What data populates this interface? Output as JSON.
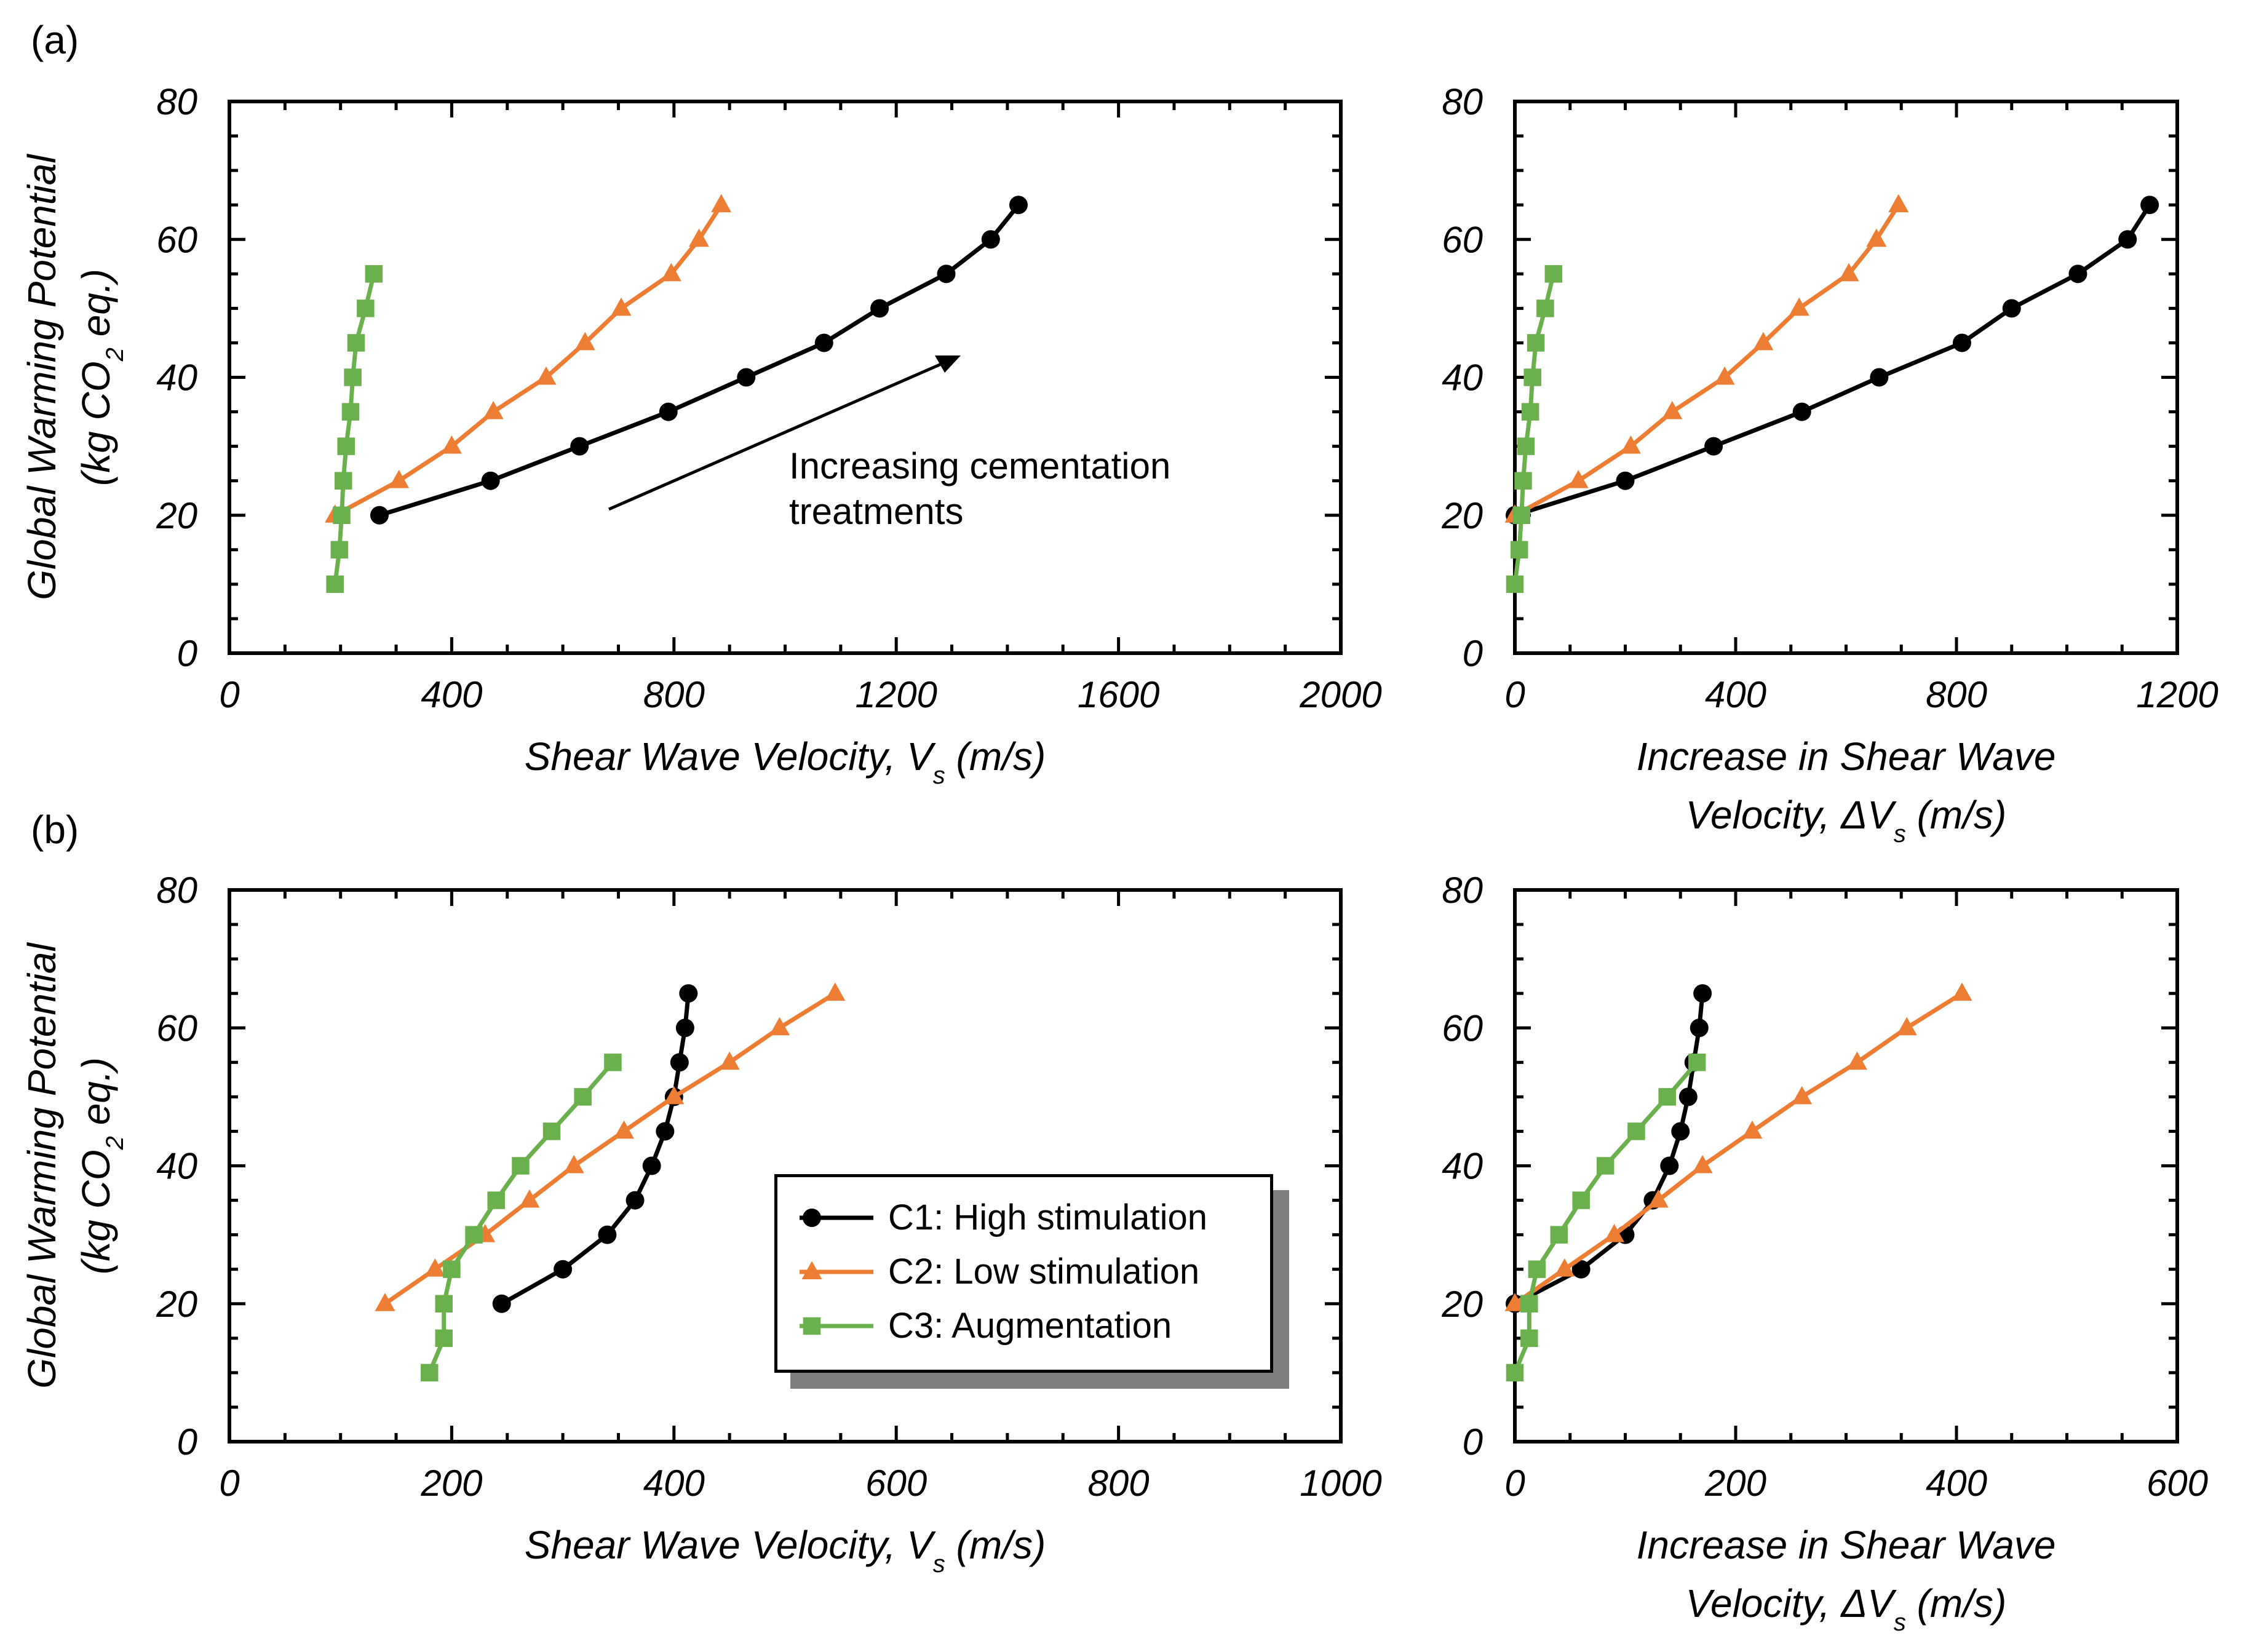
{
  "figure": {
    "panel_labels": [
      "(a)",
      "(b)"
    ],
    "ylabel_line1": "Global Warming Potential",
    "ylabel_line2_pre": "(kg CO",
    "ylabel_line2_sub": "2",
    "ylabel_line2_post": " eq.)",
    "annotation_line1": "Increasing cementation",
    "annotation_line2": "treatments"
  },
  "series_styles": [
    {
      "name": "C1: High stimulation",
      "color": "#000000",
      "marker": "circle"
    },
    {
      "name": "C2: Low stimulation",
      "color": "#ec7d33",
      "marker": "triangle"
    },
    {
      "name": "C3: Augmentation",
      "color": "#6ab04c",
      "marker": "square"
    }
  ],
  "legend": {
    "items": [
      "C1: High stimulation",
      "C2: Low stimulation",
      "C3: Augmentation"
    ]
  },
  "chart_data": [
    {
      "id": "a-left",
      "panel": "(a)",
      "type": "line",
      "xlabel": "Shear Wave Velocity, V_s (m/s)",
      "ylabel": "Global Warming Potential (kg CO2 eq.)",
      "xlim": [
        0,
        2000
      ],
      "ylim": [
        0,
        80
      ],
      "xticks": [
        0,
        400,
        800,
        1200,
        1600,
        2000
      ],
      "yticks": [
        0,
        20,
        40,
        60,
        80
      ],
      "series": [
        {
          "name": "C1: High stimulation",
          "x": [
            270,
            470,
            630,
            790,
            930,
            1070,
            1170,
            1290,
            1370,
            1420
          ],
          "y": [
            20,
            25,
            30,
            35,
            40,
            45,
            50,
            55,
            60,
            65
          ]
        },
        {
          "name": "C2: Low stimulation",
          "x": [
            190,
            305,
            400,
            475,
            570,
            640,
            705,
            795,
            845,
            885
          ],
          "y": [
            20,
            25,
            30,
            35,
            40,
            45,
            50,
            55,
            60,
            65
          ]
        },
        {
          "name": "C3: Augmentation",
          "x": [
            190,
            198,
            202,
            205,
            210,
            218,
            222,
            228,
            245,
            260
          ],
          "y": [
            10,
            15,
            20,
            25,
            30,
            35,
            40,
            45,
            50,
            55
          ]
        }
      ]
    },
    {
      "id": "a-right",
      "panel": "(a)",
      "type": "line",
      "xlabel": "Increase in Shear Wave Velocity, ΔV_s (m/s)",
      "ylabel": "Global Warming Potential (kg CO2 eq.)",
      "xlim": [
        0,
        1200
      ],
      "ylim": [
        0,
        80
      ],
      "xticks": [
        0,
        400,
        800,
        1200
      ],
      "yticks": [
        0,
        20,
        40,
        60,
        80
      ],
      "series": [
        {
          "name": "C1: High stimulation",
          "x": [
            0,
            200,
            360,
            520,
            660,
            810,
            900,
            1020,
            1110,
            1150
          ],
          "y": [
            20,
            25,
            30,
            35,
            40,
            45,
            50,
            55,
            60,
            65
          ]
        },
        {
          "name": "C2: Low stimulation",
          "x": [
            0,
            115,
            210,
            285,
            380,
            450,
            515,
            605,
            655,
            695
          ],
          "y": [
            20,
            25,
            30,
            35,
            40,
            45,
            50,
            55,
            60,
            65
          ]
        },
        {
          "name": "C3: Augmentation",
          "x": [
            0,
            8,
            12,
            15,
            20,
            28,
            32,
            38,
            55,
            70
          ],
          "y": [
            10,
            15,
            20,
            25,
            30,
            35,
            40,
            45,
            50,
            55
          ]
        }
      ]
    },
    {
      "id": "b-left",
      "panel": "(b)",
      "type": "line",
      "xlabel": "Shear Wave Velocity, V_s (m/s)",
      "ylabel": "Global Warming Potential (kg CO2 eq.)",
      "xlim": [
        0,
        1000
      ],
      "ylim": [
        0,
        80
      ],
      "xticks": [
        0,
        200,
        400,
        600,
        800,
        1000
      ],
      "yticks": [
        0,
        20,
        40,
        60,
        80
      ],
      "series": [
        {
          "name": "C1: High stimulation",
          "x": [
            245,
            300,
            340,
            365,
            380,
            392,
            400,
            405,
            410,
            413
          ],
          "y": [
            20,
            25,
            30,
            35,
            40,
            45,
            50,
            55,
            60,
            65
          ]
        },
        {
          "name": "C2: Low stimulation",
          "x": [
            140,
            185,
            230,
            270,
            310,
            355,
            400,
            450,
            495,
            545
          ],
          "y": [
            20,
            25,
            30,
            35,
            40,
            45,
            50,
            55,
            60,
            65
          ]
        },
        {
          "name": "C3: Augmentation",
          "x": [
            180,
            193,
            193,
            200,
            220,
            240,
            262,
            290,
            318,
            345
          ],
          "y": [
            10,
            15,
            20,
            25,
            30,
            35,
            40,
            45,
            50,
            55
          ]
        }
      ]
    },
    {
      "id": "b-right",
      "panel": "(b)",
      "type": "line",
      "xlabel": "Increase in Shear Wave Velocity, ΔV_s (m/s)",
      "ylabel": "Global Warming Potential (kg CO2 eq.)",
      "xlim": [
        0,
        600
      ],
      "ylim": [
        0,
        80
      ],
      "xticks": [
        0,
        200,
        400,
        600
      ],
      "yticks": [
        0,
        20,
        40,
        60,
        80
      ],
      "series": [
        {
          "name": "C1: High stimulation",
          "x": [
            0,
            60,
            100,
            125,
            140,
            150,
            157,
            162,
            167,
            170
          ],
          "y": [
            20,
            25,
            30,
            35,
            40,
            45,
            50,
            55,
            60,
            65
          ]
        },
        {
          "name": "C2: Low stimulation",
          "x": [
            0,
            45,
            90,
            130,
            170,
            215,
            260,
            310,
            355,
            405
          ],
          "y": [
            20,
            25,
            30,
            35,
            40,
            45,
            50,
            55,
            60,
            65
          ]
        },
        {
          "name": "C3: Augmentation",
          "x": [
            0,
            13,
            13,
            20,
            40,
            60,
            82,
            110,
            138,
            165
          ],
          "y": [
            10,
            15,
            20,
            25,
            30,
            35,
            40,
            45,
            50,
            55
          ]
        }
      ]
    }
  ]
}
